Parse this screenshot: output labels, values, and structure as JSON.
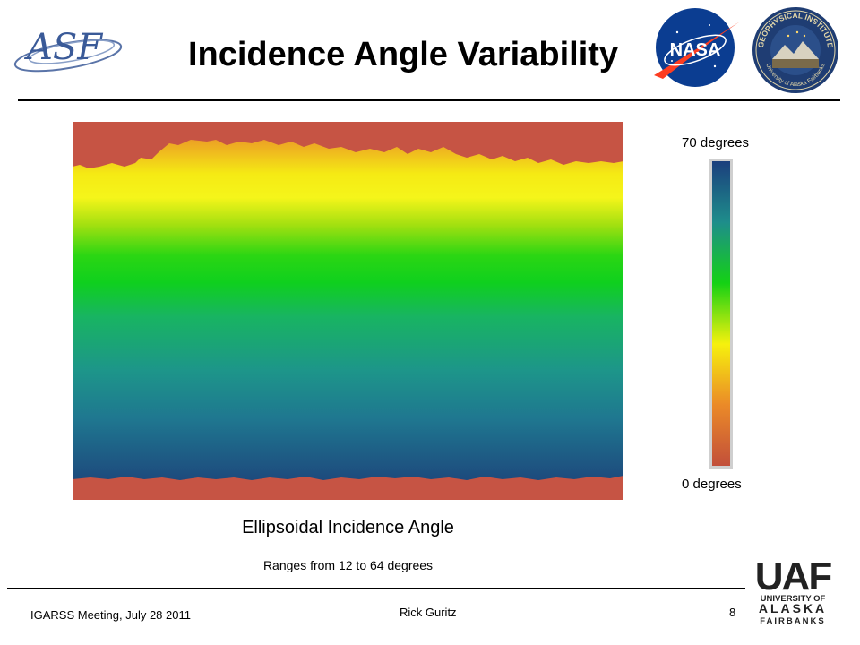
{
  "slide": {
    "title": "Incidence Angle Variability",
    "caption": "Ellipsoidal Incidence Angle",
    "subcaption": "Ranges from 12 to 64 degrees"
  },
  "colorbar": {
    "max_label": "70 degrees",
    "min_label": "0 degrees",
    "colors": [
      "#1b3f7d",
      "#1e8d8b",
      "#14d114",
      "#f6f10d",
      "#eb8a28",
      "#c24f3a"
    ]
  },
  "logos": {
    "asf": "ASF",
    "nasa": "NASA",
    "gi_top": "GEOPHYSICAL INSTITUTE",
    "gi_bottom": "University of Alaska Fairbanks",
    "uaf": "UAF",
    "uaf_line1": "UNIVERSITY OF",
    "uaf_line2": "ALASKA",
    "uaf_line3": "FAIRBANKS"
  },
  "footer": {
    "event": "IGARSS Meeting, July 28 2011",
    "presenter": "Rick Guritz",
    "page_number": "8"
  },
  "colors": {
    "nodata": "#c65444",
    "rule": "#000000"
  }
}
